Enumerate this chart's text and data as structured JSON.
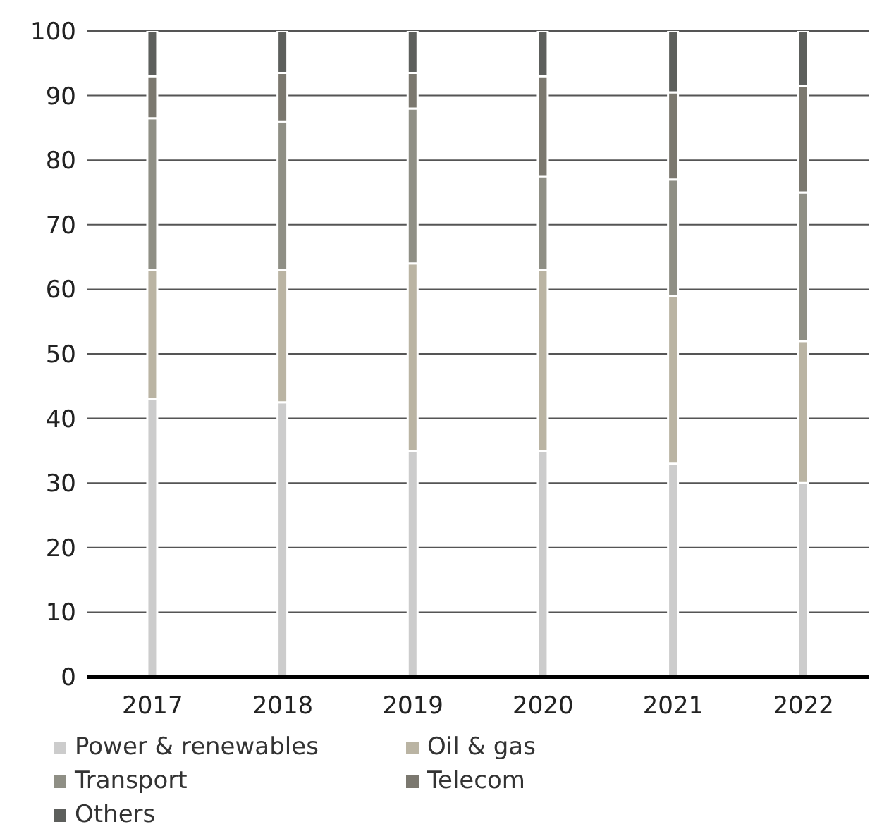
{
  "chart_data": {
    "type": "bar",
    "stacked": true,
    "categories": [
      "2017",
      "2018",
      "2019",
      "2020",
      "2021",
      "2022"
    ],
    "series": [
      {
        "name": "Power & renewables",
        "color": "#cccccc",
        "values": [
          43,
          42.5,
          35,
          35,
          33,
          30
        ]
      },
      {
        "name": "Oil & gas",
        "color": "#bab4a3",
        "values": [
          20,
          20.5,
          29,
          28,
          26,
          22
        ]
      },
      {
        "name": "Transport",
        "color": "#8f8f85",
        "values": [
          23.5,
          23,
          24,
          14.5,
          18,
          23
        ]
      },
      {
        "name": "Telecom",
        "color": "#7b786f",
        "values": [
          6.5,
          7.5,
          5.5,
          15.5,
          13.5,
          16.5
        ]
      },
      {
        "name": "Others",
        "color": "#5d5f5c",
        "values": [
          7,
          6.5,
          6.5,
          7,
          9.5,
          8.5
        ]
      }
    ],
    "ylim": [
      0,
      100
    ],
    "yticks": [
      0,
      10,
      20,
      30,
      40,
      50,
      60,
      70,
      80,
      90,
      100
    ],
    "grid": "y",
    "legend": "bottom"
  }
}
